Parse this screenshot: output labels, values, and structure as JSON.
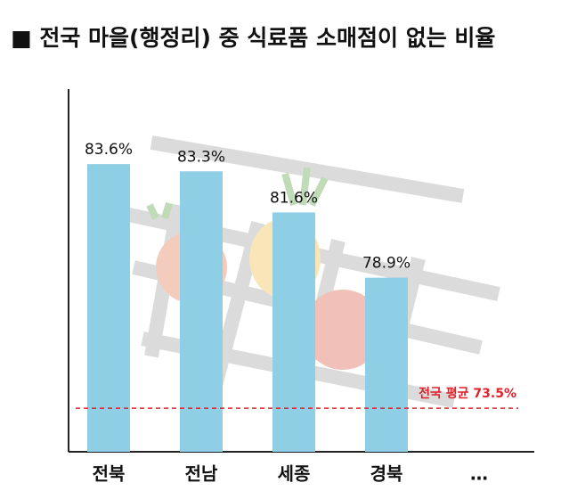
{
  "chart_data": {
    "type": "bar",
    "title": "■ 전국 마을(행정리) 중 식료품 소매점이 없는 비율",
    "categories": [
      "전북",
      "전남",
      "세종",
      "경북",
      "…"
    ],
    "values": [
      83.6,
      83.3,
      81.6,
      78.9,
      null
    ],
    "value_labels": [
      "83.6%",
      "83.3%",
      "81.6%",
      "78.9%",
      null
    ],
    "color": "#8fcfe6",
    "ylim": [
      71.7,
      86.7
    ],
    "reference_line": {
      "value": 73.5,
      "label": "전국 평균 73.5%",
      "color": "#e0202a"
    }
  }
}
